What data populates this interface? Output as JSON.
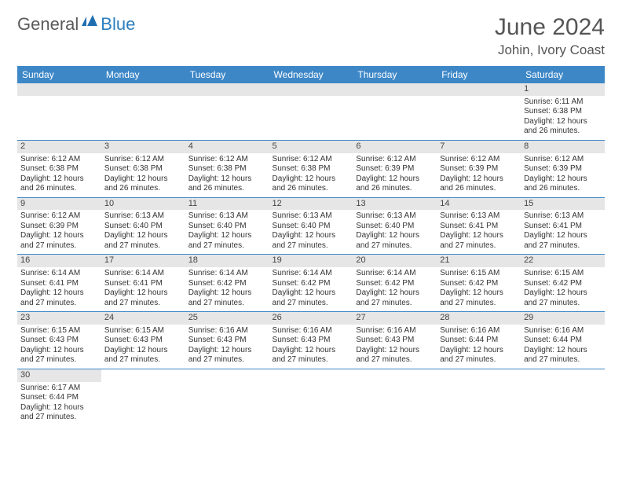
{
  "logo": {
    "text1": "General",
    "text2": "Blue"
  },
  "title": "June 2024",
  "subtitle": "Johin, Ivory Coast",
  "colors": {
    "header_bg": "#3d87c7",
    "header_text": "#ffffff",
    "daynum_bg": "#e6e6e6",
    "border": "#3d87c7",
    "logo_gray": "#5a5a5a",
    "logo_blue": "#2d7fbf"
  },
  "weekdays": [
    "Sunday",
    "Monday",
    "Tuesday",
    "Wednesday",
    "Thursday",
    "Friday",
    "Saturday"
  ],
  "weeks": [
    [
      null,
      null,
      null,
      null,
      null,
      null,
      {
        "d": "1",
        "sr": "6:11 AM",
        "ss": "6:38 PM",
        "dl": "12 hours and 26 minutes."
      }
    ],
    [
      {
        "d": "2",
        "sr": "6:12 AM",
        "ss": "6:38 PM",
        "dl": "12 hours and 26 minutes."
      },
      {
        "d": "3",
        "sr": "6:12 AM",
        "ss": "6:38 PM",
        "dl": "12 hours and 26 minutes."
      },
      {
        "d": "4",
        "sr": "6:12 AM",
        "ss": "6:38 PM",
        "dl": "12 hours and 26 minutes."
      },
      {
        "d": "5",
        "sr": "6:12 AM",
        "ss": "6:38 PM",
        "dl": "12 hours and 26 minutes."
      },
      {
        "d": "6",
        "sr": "6:12 AM",
        "ss": "6:39 PM",
        "dl": "12 hours and 26 minutes."
      },
      {
        "d": "7",
        "sr": "6:12 AM",
        "ss": "6:39 PM",
        "dl": "12 hours and 26 minutes."
      },
      {
        "d": "8",
        "sr": "6:12 AM",
        "ss": "6:39 PM",
        "dl": "12 hours and 26 minutes."
      }
    ],
    [
      {
        "d": "9",
        "sr": "6:12 AM",
        "ss": "6:39 PM",
        "dl": "12 hours and 27 minutes."
      },
      {
        "d": "10",
        "sr": "6:13 AM",
        "ss": "6:40 PM",
        "dl": "12 hours and 27 minutes."
      },
      {
        "d": "11",
        "sr": "6:13 AM",
        "ss": "6:40 PM",
        "dl": "12 hours and 27 minutes."
      },
      {
        "d": "12",
        "sr": "6:13 AM",
        "ss": "6:40 PM",
        "dl": "12 hours and 27 minutes."
      },
      {
        "d": "13",
        "sr": "6:13 AM",
        "ss": "6:40 PM",
        "dl": "12 hours and 27 minutes."
      },
      {
        "d": "14",
        "sr": "6:13 AM",
        "ss": "6:41 PM",
        "dl": "12 hours and 27 minutes."
      },
      {
        "d": "15",
        "sr": "6:13 AM",
        "ss": "6:41 PM",
        "dl": "12 hours and 27 minutes."
      }
    ],
    [
      {
        "d": "16",
        "sr": "6:14 AM",
        "ss": "6:41 PM",
        "dl": "12 hours and 27 minutes."
      },
      {
        "d": "17",
        "sr": "6:14 AM",
        "ss": "6:41 PM",
        "dl": "12 hours and 27 minutes."
      },
      {
        "d": "18",
        "sr": "6:14 AM",
        "ss": "6:42 PM",
        "dl": "12 hours and 27 minutes."
      },
      {
        "d": "19",
        "sr": "6:14 AM",
        "ss": "6:42 PM",
        "dl": "12 hours and 27 minutes."
      },
      {
        "d": "20",
        "sr": "6:14 AM",
        "ss": "6:42 PM",
        "dl": "12 hours and 27 minutes."
      },
      {
        "d": "21",
        "sr": "6:15 AM",
        "ss": "6:42 PM",
        "dl": "12 hours and 27 minutes."
      },
      {
        "d": "22",
        "sr": "6:15 AM",
        "ss": "6:42 PM",
        "dl": "12 hours and 27 minutes."
      }
    ],
    [
      {
        "d": "23",
        "sr": "6:15 AM",
        "ss": "6:43 PM",
        "dl": "12 hours and 27 minutes."
      },
      {
        "d": "24",
        "sr": "6:15 AM",
        "ss": "6:43 PM",
        "dl": "12 hours and 27 minutes."
      },
      {
        "d": "25",
        "sr": "6:16 AM",
        "ss": "6:43 PM",
        "dl": "12 hours and 27 minutes."
      },
      {
        "d": "26",
        "sr": "6:16 AM",
        "ss": "6:43 PM",
        "dl": "12 hours and 27 minutes."
      },
      {
        "d": "27",
        "sr": "6:16 AM",
        "ss": "6:43 PM",
        "dl": "12 hours and 27 minutes."
      },
      {
        "d": "28",
        "sr": "6:16 AM",
        "ss": "6:44 PM",
        "dl": "12 hours and 27 minutes."
      },
      {
        "d": "29",
        "sr": "6:16 AM",
        "ss": "6:44 PM",
        "dl": "12 hours and 27 minutes."
      }
    ],
    [
      {
        "d": "30",
        "sr": "6:17 AM",
        "ss": "6:44 PM",
        "dl": "12 hours and 27 minutes."
      },
      null,
      null,
      null,
      null,
      null,
      null
    ]
  ],
  "labels": {
    "sunrise": "Sunrise:",
    "sunset": "Sunset:",
    "daylight": "Daylight:"
  }
}
